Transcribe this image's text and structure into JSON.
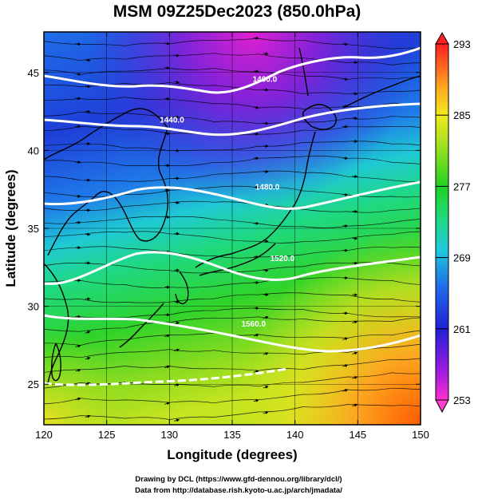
{
  "title": "MSM 09Z25Dec2023 (850.0hPa)",
  "x_axis": {
    "label": "Longitude (degrees)",
    "range": [
      120,
      150
    ],
    "ticks": [
      120,
      125,
      130,
      135,
      140,
      145,
      150
    ]
  },
  "y_axis": {
    "label": "Latitude  (degrees)",
    "range": [
      22.4,
      47.6
    ],
    "ticks": [
      25,
      30,
      35,
      40,
      45
    ]
  },
  "colorbar": {
    "range": [
      253,
      293
    ],
    "labels": [
      "293",
      "285",
      "277",
      "269",
      "261",
      "253"
    ]
  },
  "contours": [
    {
      "label": "1400.0",
      "lon": 137.6,
      "lat": 44.6
    },
    {
      "label": "1440.0",
      "lon": 130.2,
      "lat": 42.0
    },
    {
      "label": "1480.0",
      "lon": 137.8,
      "lat": 37.7
    },
    {
      "label": "1520.0",
      "lon": 139.0,
      "lat": 33.1
    },
    {
      "label": "1560.0",
      "lon": 136.7,
      "lat": 28.9
    }
  ],
  "credits": {
    "line1": "Drawing by DCL (https://www.gfd-dennou.org/library/dcl/)",
    "line2": "Data from http://database.rish.kyoto-u.ac.jp/arch/jmadata/"
  },
  "colors": {
    "cold": "#c21fd6",
    "cool": "#1f4ee0",
    "mid": "#1fc9c4",
    "warm": "#4cdd1f",
    "hot": "#ff6a00"
  }
}
